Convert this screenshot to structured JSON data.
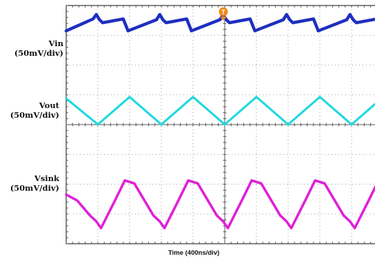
{
  "chart_data": {
    "type": "line",
    "title": "",
    "xlabel": "Time (400ns/div)",
    "ylabel": "",
    "x_divisions": 10,
    "y_divisions": 8,
    "grid": true,
    "trigger_marker": "T",
    "series": [
      {
        "name": "Vin",
        "scale": "(50mV/div)",
        "color": "#1f2fbf",
        "waveform": "sawtooth rising ramp with switching spikes",
        "x_div": [
          0.0,
          0.85,
          0.95,
          1.05,
          1.15,
          1.8,
          1.95,
          2.85,
          2.95,
          3.05,
          3.15,
          3.8,
          3.95,
          4.85,
          4.95,
          5.05,
          5.15,
          5.8,
          5.95,
          6.85,
          6.95,
          7.05,
          7.15,
          7.8,
          7.95,
          8.85,
          8.95,
          9.05,
          9.15,
          9.8,
          9.95
        ],
        "y_div": [
          2.15,
          2.95,
          3.25,
          2.9,
          2.7,
          2.95,
          2.15,
          2.9,
          3.25,
          2.9,
          2.7,
          2.95,
          2.15,
          2.9,
          3.25,
          2.9,
          2.7,
          2.95,
          2.15,
          2.9,
          3.25,
          2.9,
          2.7,
          2.95,
          2.15,
          2.9,
          3.25,
          2.9,
          2.7,
          2.95,
          2.15
        ]
      },
      {
        "name": "Vout",
        "scale": "(50mV/div)",
        "color": "#22d8e0",
        "waveform": "triangle",
        "x_div": [
          0.0,
          1.0,
          2.0,
          3.0,
          4.0,
          5.0,
          6.0,
          7.0,
          8.0,
          9.0,
          10.0
        ],
        "y_div": [
          1.65,
          -0.1,
          1.75,
          -0.1,
          1.75,
          -0.1,
          1.75,
          -0.1,
          1.75,
          -0.1,
          1.75
        ]
      },
      {
        "name": "Vsink",
        "scale": "(50mV/div)",
        "color": "#e020d8",
        "waveform": "rounded triangle",
        "x_div": [
          0.0,
          0.35,
          0.75,
          0.95,
          1.1,
          1.55,
          1.85,
          2.15,
          2.75,
          2.95,
          3.1,
          3.55,
          3.85,
          4.15,
          4.75,
          4.95,
          5.1,
          5.55,
          5.85,
          6.15,
          6.75,
          6.95,
          7.1,
          7.55,
          7.85,
          8.15,
          8.75,
          8.95,
          9.1,
          9.55,
          9.85,
          10.0
        ],
        "y_div": [
          -0.5,
          -0.9,
          -1.9,
          -2.3,
          -2.75,
          -0.85,
          0.45,
          0.25,
          -1.9,
          -2.3,
          -2.75,
          -0.85,
          0.45,
          0.25,
          -1.9,
          -2.3,
          -2.75,
          -0.85,
          0.45,
          0.25,
          -1.9,
          -2.3,
          -2.75,
          -0.85,
          0.45,
          0.25,
          -1.9,
          -2.3,
          -2.75,
          -0.85,
          0.45,
          0.2
        ]
      }
    ]
  }
}
